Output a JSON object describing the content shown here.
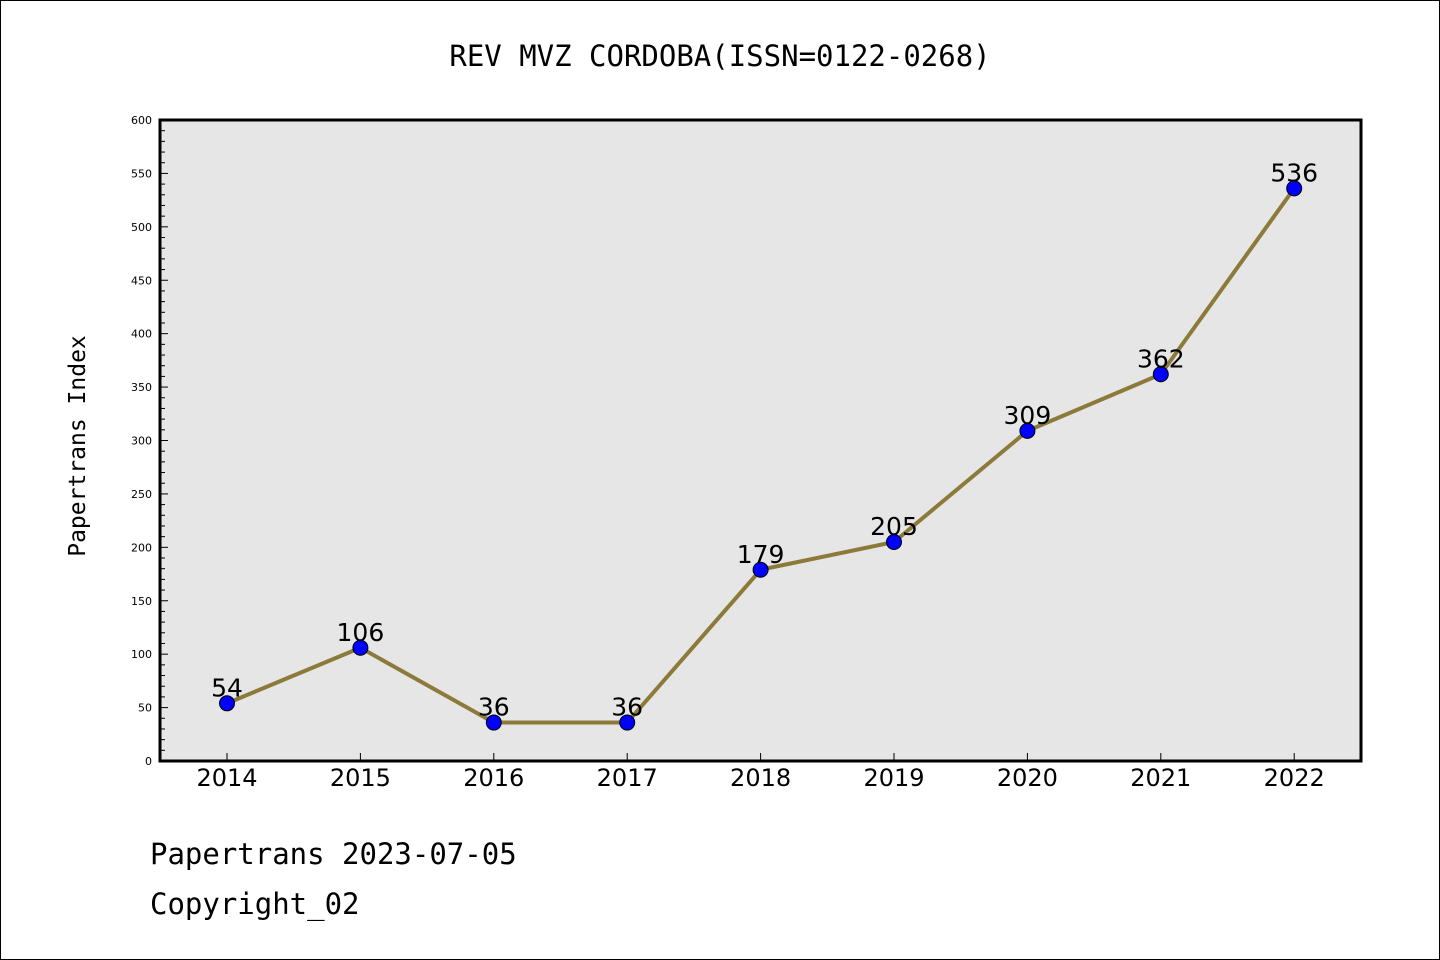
{
  "chart_data": {
    "type": "line",
    "title": "REV MVZ CORDOBA(ISSN=0122-0268)",
    "ylabel": "Papertrans Index",
    "xlabel": "",
    "categories": [
      "2014",
      "2015",
      "2016",
      "2017",
      "2018",
      "2019",
      "2020",
      "2021",
      "2022"
    ],
    "values": [
      54,
      106,
      36,
      36,
      179,
      205,
      309,
      362,
      536
    ],
    "data_labels": [
      "54",
      "106",
      "36",
      "36",
      "179",
      "205",
      "309",
      "362",
      "536"
    ],
    "ylim": [
      0,
      600
    ],
    "yticks": [
      "0",
      "50",
      "100",
      "150",
      "200",
      "250",
      "300",
      "350",
      "400",
      "450",
      "500",
      "550",
      "600"
    ],
    "grid": false,
    "legend": "none",
    "colors": {
      "line": "#8c7a3a",
      "marker": "#0000ff",
      "plot_bg": "#e6e6e6"
    }
  },
  "footer": {
    "line1": "Papertrans 2023-07-05",
    "line2": "Copyright_02"
  }
}
